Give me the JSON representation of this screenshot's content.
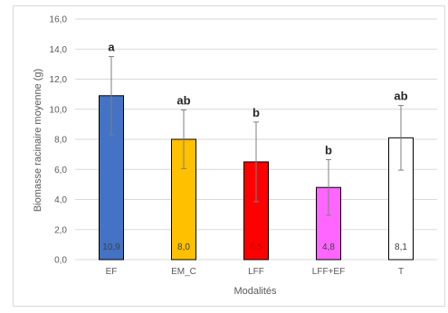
{
  "chart_data": {
    "type": "bar",
    "xlabel": "Modalités",
    "ylabel": "Biomasse racinaire moyenne (g)",
    "ylim": [
      0,
      16
    ],
    "ytick_step": 2,
    "yticks": [
      "0,0",
      "2,0",
      "4,0",
      "6,0",
      "8,0",
      "10,0",
      "12,0",
      "14,0",
      "16,0"
    ],
    "grid": true,
    "categories": [
      "EF",
      "EM_C",
      "LFF",
      "LFF+EF",
      "T"
    ],
    "values": [
      10.9,
      8.0,
      6.5,
      4.8,
      8.1
    ],
    "data_labels": [
      "10,9",
      "8,0",
      "6,5",
      "4,8",
      "8,1"
    ],
    "error_plus_minus": [
      2.6,
      1.95,
      2.65,
      1.85,
      2.15
    ],
    "significance": [
      "a",
      "ab",
      "b",
      "b",
      "ab"
    ],
    "bar_colors": [
      "#4472c4",
      "#ffc000",
      "#ff0000",
      "#ff66ff",
      "#ffffff"
    ],
    "data_label_colors": [
      "#404040",
      "#404040",
      "#c00000",
      "#404040",
      "#404040"
    ],
    "bar_edge_color": "#000000",
    "grid_color": "#d9d9d9",
    "errorbar_color": "#7f7f7f"
  }
}
